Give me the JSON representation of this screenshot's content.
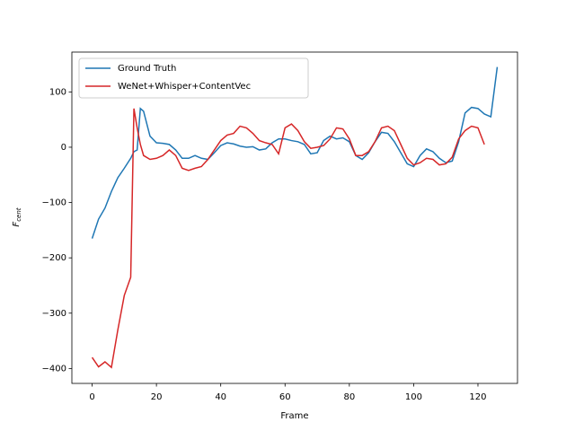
{
  "chart_data": {
    "type": "line",
    "xlabel": "Frame",
    "ylabel": {
      "text": "F",
      "subscript": "cent"
    },
    "x": [
      0,
      2,
      4,
      6,
      8,
      10,
      12,
      13,
      14,
      15,
      16,
      18,
      20,
      22,
      24,
      26,
      28,
      30,
      32,
      34,
      36,
      38,
      40,
      42,
      44,
      46,
      48,
      50,
      52,
      54,
      56,
      58,
      60,
      62,
      64,
      66,
      68,
      70,
      72,
      74,
      76,
      78,
      80,
      82,
      84,
      86,
      88,
      90,
      92,
      94,
      96,
      98,
      100,
      102,
      104,
      106,
      108,
      110,
      112,
      114,
      116,
      118,
      120,
      122,
      124,
      126
    ],
    "series": [
      {
        "name": "Ground Truth",
        "color": "#1f77b4",
        "values": [
          -165,
          -130,
          -110,
          -80,
          -55,
          -38,
          -20,
          -8,
          -5,
          70,
          65,
          20,
          8,
          7,
          5,
          -5,
          -20,
          -20,
          -15,
          -20,
          -22,
          -10,
          3,
          8,
          6,
          2,
          0,
          1,
          -5,
          -3,
          8,
          15,
          15,
          12,
          10,
          5,
          -12,
          -10,
          12,
          20,
          15,
          17,
          10,
          -15,
          -22,
          -10,
          10,
          27,
          25,
          10,
          -10,
          -30,
          -35,
          -15,
          -3,
          -8,
          -20,
          -28,
          -25,
          10,
          62,
          72,
          70,
          60,
          55,
          145
        ]
      },
      {
        "name": "WeNet+Whisper+ContentVec",
        "color": "#d62728",
        "values": [
          -380,
          -397,
          -388,
          -398,
          -330,
          -268,
          -235,
          70,
          35,
          5,
          -15,
          -22,
          -20,
          -15,
          -5,
          -15,
          -38,
          -42,
          -38,
          -35,
          -22,
          -5,
          12,
          22,
          25,
          38,
          35,
          25,
          12,
          8,
          5,
          -12,
          35,
          42,
          30,
          10,
          -2,
          0,
          3,
          15,
          35,
          33,
          15,
          -15,
          -15,
          -8,
          10,
          35,
          38,
          30,
          5,
          -20,
          -32,
          -28,
          -20,
          -22,
          -32,
          -30,
          -18,
          15,
          30,
          38,
          35,
          5,
          null,
          null
        ]
      }
    ],
    "xlim": [
      -6.3,
      132.3
    ],
    "ylim": [
      -427,
      172
    ],
    "xticks": [
      0,
      20,
      40,
      60,
      80,
      100,
      120
    ],
    "yticks": [
      {
        "value": -400,
        "label": "−400"
      },
      {
        "value": -300,
        "label": "−300"
      },
      {
        "value": -200,
        "label": "−200"
      },
      {
        "value": -100,
        "label": "−100"
      },
      0,
      100
    ],
    "legend": "upper left"
  }
}
